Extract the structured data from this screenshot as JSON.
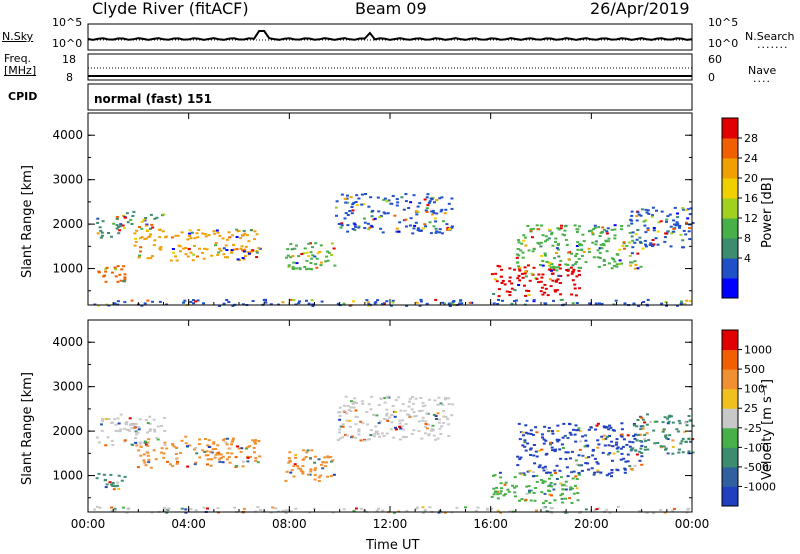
{
  "header": {
    "station": "Clyde River (fitACF)",
    "beam": "Beam 09",
    "date": "26/Apr/2019"
  },
  "status_panels": {
    "nsky_label": "N.Sky",
    "nsearch_label": "N.Search",
    "noise_ticks": [
      "10^5",
      "10^0"
    ],
    "noise_right_ticks": [
      "10^5",
      "10^0"
    ],
    "freq_label": "Freq.",
    "freq_unit": "[MHz]",
    "freq_ticks": [
      "18",
      "8"
    ],
    "nave_label": "Nave",
    "nave_ticks": [
      "60",
      "0"
    ],
    "cpid_label": "CPID",
    "cpid_text": "normal (fast) 151"
  },
  "chart_data": [
    {
      "type": "heatmap",
      "title": "",
      "ylabel": "Slant Range [km]",
      "xlabel": "",
      "x_ticks": [
        "00:00",
        "04:00",
        "08:00",
        "12:00",
        "16:00",
        "20:00",
        "00:00"
      ],
      "y_ticks": [
        "1000",
        "2000",
        "3000",
        "4000"
      ],
      "ylim": [
        180,
        4500
      ],
      "colorbar": {
        "label": "Power [dB]",
        "ticks": [
          "28",
          "24",
          "20",
          "16",
          "12",
          "8",
          "4"
        ],
        "colors": [
          "#0000ff",
          "#2050c8",
          "#3c8c6e",
          "#48b048",
          "#a0d020",
          "#f0d000",
          "#f0a000",
          "#f06000",
          "#e00000"
        ]
      },
      "echo_regions": [
        {
          "t0": 0.3,
          "t1": 1.5,
          "r0": 700,
          "r1": 1100,
          "color": "#f06000"
        },
        {
          "t0": 0.3,
          "t1": 1.2,
          "r0": 1700,
          "r1": 2200,
          "color": "#3c8c6e"
        },
        {
          "t0": 1.2,
          "t1": 3.0,
          "r0": 1900,
          "r1": 2300,
          "color": "#3c8c6e"
        },
        {
          "t0": 1.8,
          "t1": 6.8,
          "r0": 1200,
          "r1": 1900,
          "color": "#f0a000"
        },
        {
          "t0": 7.8,
          "t1": 9.8,
          "r0": 1000,
          "r1": 1600,
          "color": "#48b048"
        },
        {
          "t0": 9.8,
          "t1": 14.5,
          "r0": 1800,
          "r1": 2700,
          "color": "#2050c8"
        },
        {
          "t0": 16.0,
          "t1": 19.5,
          "r0": 400,
          "r1": 1100,
          "color": "#e00000"
        },
        {
          "t0": 17.0,
          "t1": 22.0,
          "r0": 1000,
          "r1": 2000,
          "color": "#48b048"
        },
        {
          "t0": 21.5,
          "t1": 24.0,
          "r0": 1500,
          "r1": 2400,
          "color": "#2050c8"
        },
        {
          "t0": 0.0,
          "t1": 24.0,
          "r0": 180,
          "r1": 320,
          "color": "#2050c8"
        }
      ]
    },
    {
      "type": "heatmap",
      "title": "",
      "ylabel": "Slant Range [km]",
      "xlabel": "Time UT",
      "x_ticks": [
        "00:00",
        "04:00",
        "08:00",
        "12:00",
        "16:00",
        "20:00",
        "00:00"
      ],
      "y_ticks": [
        "1000",
        "2000",
        "3000",
        "4000"
      ],
      "ylim": [
        180,
        4500
      ],
      "colorbar": {
        "label": "Velocity [m s⁻¹]",
        "ticks": [
          "1000",
          "500",
          "100",
          "25",
          "-25",
          "-100",
          "-500",
          "-1000"
        ],
        "colors": [
          "#2040c0",
          "#3060a0",
          "#3c8c6e",
          "#48b048",
          "#c8c8c8",
          "#f0c020",
          "#f09030",
          "#f06000",
          "#e00000"
        ]
      },
      "echo_regions": [
        {
          "t0": 0.3,
          "t1": 1.5,
          "r0": 700,
          "r1": 1100,
          "color": "#3c8c6e"
        },
        {
          "t0": 0.3,
          "t1": 3.0,
          "r0": 1700,
          "r1": 2400,
          "color": "#c8c8c8"
        },
        {
          "t0": 1.8,
          "t1": 6.8,
          "r0": 1200,
          "r1": 1900,
          "color": "#f09030"
        },
        {
          "t0": 7.8,
          "t1": 9.8,
          "r0": 900,
          "r1": 1600,
          "color": "#f09030"
        },
        {
          "t0": 9.8,
          "t1": 14.5,
          "r0": 1800,
          "r1": 2800,
          "color": "#c8c8c8"
        },
        {
          "t0": 16.0,
          "t1": 19.5,
          "r0": 400,
          "r1": 1100,
          "color": "#48b048"
        },
        {
          "t0": 17.0,
          "t1": 22.0,
          "r0": 1000,
          "r1": 2200,
          "color": "#2040c0"
        },
        {
          "t0": 21.5,
          "t1": 24.0,
          "r0": 1500,
          "r1": 2400,
          "color": "#3c8c6e"
        },
        {
          "t0": 0.0,
          "t1": 24.0,
          "r0": 180,
          "r1": 320,
          "color": "#c8c8c8"
        }
      ]
    }
  ]
}
